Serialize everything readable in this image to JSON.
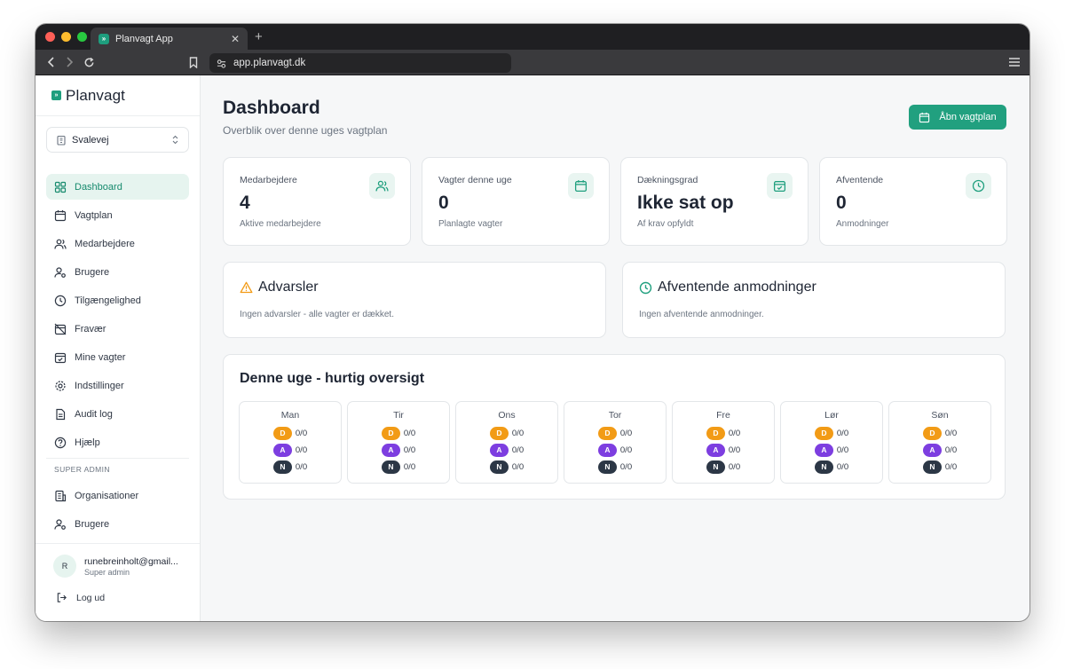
{
  "browser": {
    "tab_title": "Planvagt App",
    "url": "app.planvagt.dk"
  },
  "sidebar": {
    "brand": "Planvagt",
    "org_selector": "Svalevej",
    "items": [
      {
        "label": "Dashboard",
        "icon": "layout-grid-icon",
        "active": true
      },
      {
        "label": "Vagtplan",
        "icon": "calendar-icon"
      },
      {
        "label": "Medarbejdere",
        "icon": "users-icon"
      },
      {
        "label": "Brugere",
        "icon": "user-cog-icon"
      },
      {
        "label": "Tilgængelighed",
        "icon": "clock-icon"
      },
      {
        "label": "Fravær",
        "icon": "calendar-off-icon"
      },
      {
        "label": "Mine vagter",
        "icon": "calendar-check-icon"
      },
      {
        "label": "Indstillinger",
        "icon": "gear-icon"
      },
      {
        "label": "Audit log",
        "icon": "file-text-icon"
      },
      {
        "label": "Hjælp",
        "icon": "help-circle-icon"
      }
    ],
    "super_admin_label": "SUPER ADMIN",
    "admin_items": [
      {
        "label": "Organisationer",
        "icon": "building-icon"
      },
      {
        "label": "Brugere",
        "icon": "user-cog-icon"
      }
    ],
    "user": {
      "initial": "R",
      "email": "runebreinholt@gmail...",
      "role": "Super admin"
    },
    "logout": "Log ud"
  },
  "header": {
    "title": "Dashboard",
    "subtitle": "Overblik over denne uges vagtplan",
    "open_button": "Åbn vagtplan"
  },
  "stats": [
    {
      "label": "Medarbejdere",
      "value": "4",
      "sub": "Aktive medarbejdere",
      "icon": "users-icon"
    },
    {
      "label": "Vagter denne uge",
      "value": "0",
      "sub": "Planlagte vagter",
      "icon": "calendar-icon"
    },
    {
      "label": "Dækningsgrad",
      "value": "Ikke sat op",
      "sub": "Af krav opfyldt",
      "icon": "calendar-check-icon"
    },
    {
      "label": "Afventende",
      "value": "0",
      "sub": "Anmodninger",
      "icon": "clock-icon"
    }
  ],
  "warnings": {
    "title": "Advarsler",
    "text": "Ingen advarsler - alle vagter er dækket."
  },
  "pending": {
    "title": "Afventende anmodninger",
    "text": "Ingen afventende anmodninger."
  },
  "week": {
    "title": "Denne uge - hurtig oversigt",
    "days": [
      {
        "name": "Man",
        "d": "0/0",
        "a": "0/0",
        "n": "0/0"
      },
      {
        "name": "Tir",
        "d": "0/0",
        "a": "0/0",
        "n": "0/0"
      },
      {
        "name": "Ons",
        "d": "0/0",
        "a": "0/0",
        "n": "0/0"
      },
      {
        "name": "Tor",
        "d": "0/0",
        "a": "0/0",
        "n": "0/0"
      },
      {
        "name": "Fre",
        "d": "0/0",
        "a": "0/0",
        "n": "0/0"
      },
      {
        "name": "Lør",
        "d": "0/0",
        "a": "0/0",
        "n": "0/0"
      },
      {
        "name": "Søn",
        "d": "0/0",
        "a": "0/0",
        "n": "0/0"
      }
    ],
    "shift_letters": {
      "d": "D",
      "a": "A",
      "n": "N"
    }
  },
  "colors": {
    "accent": "#21a07f",
    "day_shift": "#f29b16",
    "evening_shift": "#7d3ee0",
    "night_shift": "#2c3746",
    "warning": "#f29b16"
  }
}
